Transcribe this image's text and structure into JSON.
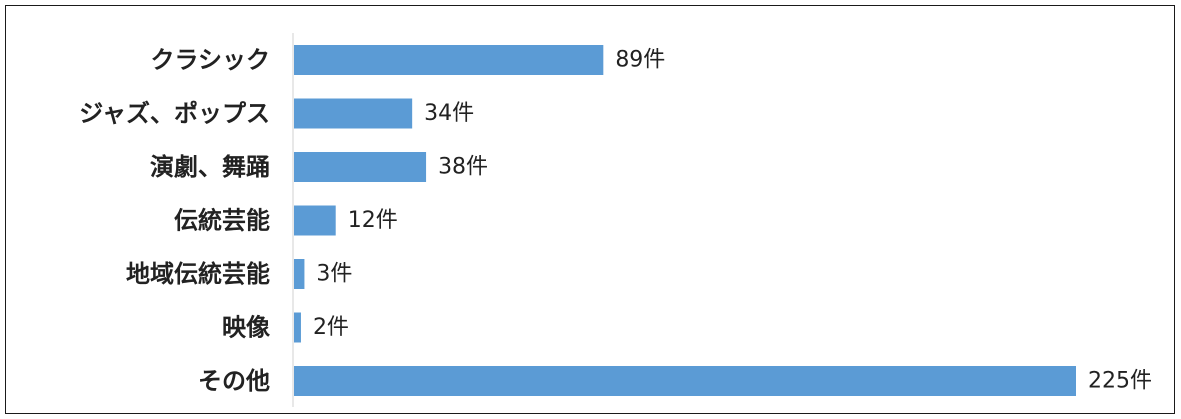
{
  "chart_data": {
    "type": "bar",
    "orientation": "horizontal",
    "categories": [
      "クラシック",
      "ジャズ、ポップス",
      "演劇、舞踊",
      "伝統芸能",
      "地域伝統芸能",
      "映像",
      "その他"
    ],
    "values": [
      89,
      34,
      38,
      12,
      3,
      2,
      225
    ],
    "value_labels": [
      "89件",
      "34件",
      "38件",
      "12件",
      "3件",
      "2件",
      "225件"
    ],
    "title": "",
    "xlabel": "",
    "ylabel": "",
    "xlim": [
      0,
      225
    ],
    "grid": false,
    "legend": "none",
    "bar_color": "#5b9bd5",
    "axis_color": "#d9d9d9"
  }
}
